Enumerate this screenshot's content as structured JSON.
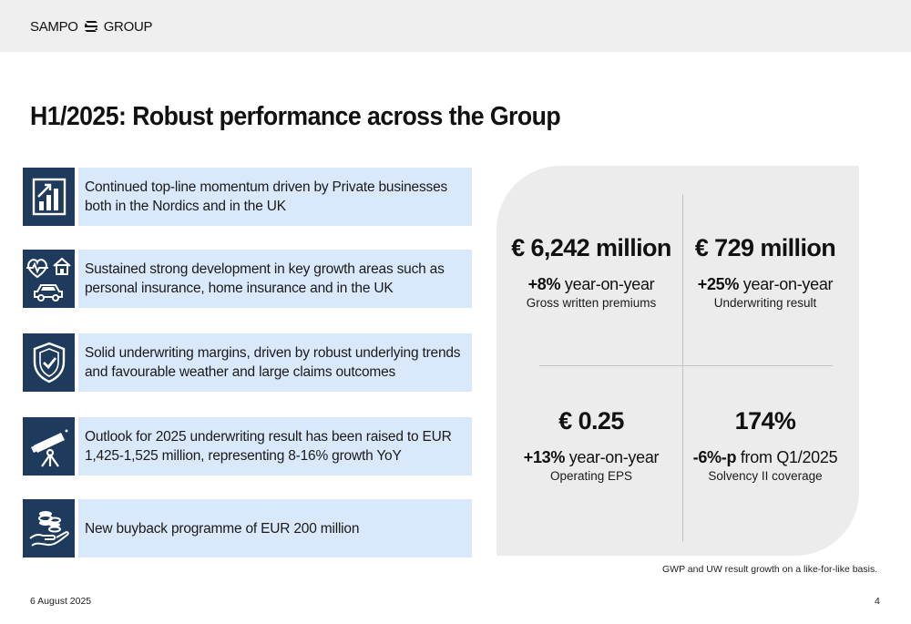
{
  "header": {
    "logo_left": "SAMPO",
    "logo_right": "GROUP",
    "logo_icon": "sampo-s-mark-icon"
  },
  "title": "H1/2025: Robust performance across the Group",
  "highlights": [
    {
      "icon": "growth-chart-icon",
      "text": "Continued top-line momentum driven by Private businesses both in the Nordics and in the UK"
    },
    {
      "icon": "health-home-car-icon",
      "text": "Sustained strong development in key growth areas such as personal insurance, home insurance and in the UK"
    },
    {
      "icon": "shield-check-icon",
      "text": "Solid underwriting margins, driven by robust underlying trends and favourable weather and large claims outcomes"
    },
    {
      "icon": "telescope-icon",
      "text": "Outlook for 2025 underwriting result has been raised to EUR 1,425-1,525 million, representing 8-16% growth YoY"
    },
    {
      "icon": "coins-hand-icon",
      "text": "New buyback programme of EUR 200 million"
    }
  ],
  "kpis": [
    {
      "value": "€ 6,242 million",
      "change": "+8%",
      "change_suffix": " year-on-year",
      "label": "Gross written premiums"
    },
    {
      "value": "€ 729 million",
      "change": "+25%",
      "change_suffix": " year-on-year",
      "label": "Underwriting result"
    },
    {
      "value": "€ 0.25",
      "change": "+13%",
      "change_suffix": " year-on-year",
      "label": "Operating EPS"
    },
    {
      "value": "174%",
      "change": "-6%-p",
      "change_suffix": " from Q1/2025",
      "label": "Solvency II coverage"
    }
  ],
  "footnote": "GWP and UW result growth on a like-for-like basis.",
  "footer": {
    "date": "6 August 2025",
    "page": "4"
  },
  "colors": {
    "icon_bg": "#1e3a5c",
    "text_bg": "#d9e9fb",
    "panel_bg": "#ececec",
    "header_bg": "#efefef"
  }
}
